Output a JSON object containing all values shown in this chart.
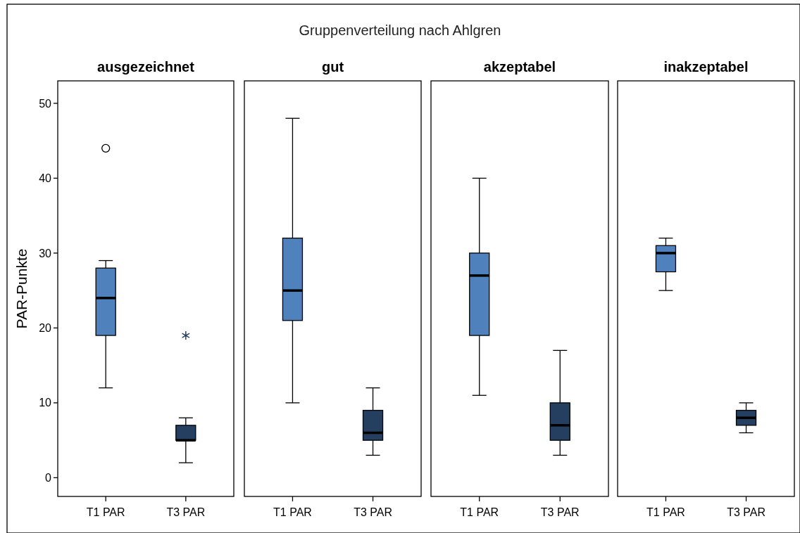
{
  "chart_data": [
    {
      "type": "box",
      "title": "ausgezeichnet",
      "annotations": [
        "Gruppenverteilung nach Ahlgren"
      ],
      "ylabel": "PAR-Punkte",
      "categories": [
        "T1 PAR",
        "T3 PAR"
      ],
      "ylim": [
        -2.5,
        53
      ],
      "yticks": [
        0,
        10,
        20,
        30,
        40,
        50
      ],
      "series": [
        {
          "color": "#4f81bd",
          "marker": "circle",
          "boxes": [
            {
              "low": 12,
              "q1": 19,
              "median": 24,
              "q3": 28,
              "high": 29,
              "outliers": [
                44
              ]
            },
            null
          ]
        },
        {
          "color": "#243f60",
          "marker": "star",
          "boxes": [
            null,
            {
              "low": 2,
              "q1": 5,
              "median": 5,
              "q3": 7,
              "high": 8,
              "outliers": [
                19
              ]
            }
          ]
        }
      ]
    },
    {
      "type": "box",
      "title": "gut",
      "categories": [
        "T1 PAR",
        "T3 PAR"
      ],
      "ylim": [
        -2.5,
        53
      ],
      "tick_labels": "x",
      "series": [
        {
          "color": "#4f81bd",
          "boxes": [
            {
              "low": 10,
              "q1": 21,
              "median": 25,
              "q3": 32,
              "high": 48
            },
            null
          ]
        },
        {
          "color": "#243f60",
          "boxes": [
            null,
            {
              "low": 3,
              "q1": 5,
              "median": 6,
              "q3": 9,
              "high": 12
            }
          ]
        }
      ]
    },
    {
      "type": "box",
      "title": "akzeptabel",
      "categories": [
        "T1 PAR",
        "T3 PAR"
      ],
      "ylim": [
        -2.5,
        53
      ],
      "tick_labels": "x",
      "series": [
        {
          "color": "#4f81bd",
          "boxes": [
            {
              "low": 11,
              "q1": 19,
              "median": 27,
              "q3": 30,
              "high": 40
            },
            null
          ]
        },
        {
          "color": "#243f60",
          "boxes": [
            null,
            {
              "low": 3,
              "q1": 5,
              "median": 7,
              "q3": 10,
              "high": 17
            }
          ]
        }
      ]
    },
    {
      "type": "box",
      "title": "inakzeptabel",
      "categories": [
        "T1 PAR",
        "T3 PAR"
      ],
      "ylim": [
        -2.5,
        53
      ],
      "tick_labels": "x",
      "series": [
        {
          "color": "#4f81bd",
          "boxes": [
            {
              "low": 25,
              "q1": 27.5,
              "median": 30,
              "q3": 31,
              "high": 32
            },
            null
          ]
        },
        {
          "color": "#243f60",
          "boxes": [
            null,
            {
              "low": 6,
              "q1": 7,
              "median": 8,
              "q3": 9,
              "high": 10
            }
          ]
        }
      ]
    }
  ]
}
